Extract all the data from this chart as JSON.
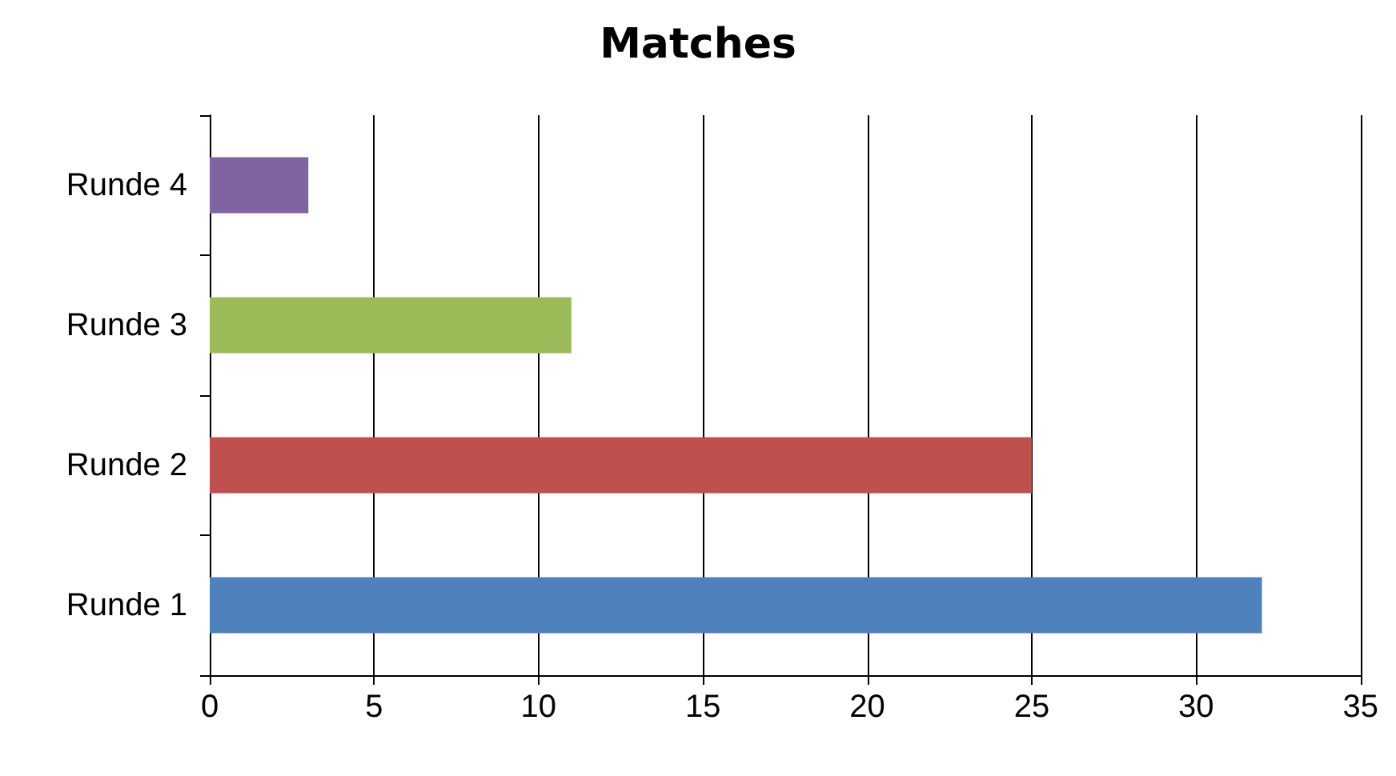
{
  "chart_data": {
    "type": "bar",
    "title": "Matches",
    "orientation": "horizontal",
    "categories": [
      "Runde 4",
      "Runde 3",
      "Runde 2",
      "Runde 1"
    ],
    "values": [
      3,
      11,
      25,
      32
    ],
    "colors": [
      "#8064a2",
      "#9bbb59",
      "#c0504d",
      "#4f81bd"
    ],
    "xlim": [
      0,
      35
    ],
    "xticks": [
      0,
      5,
      10,
      15,
      20,
      25,
      30,
      35
    ],
    "grid": "x"
  }
}
